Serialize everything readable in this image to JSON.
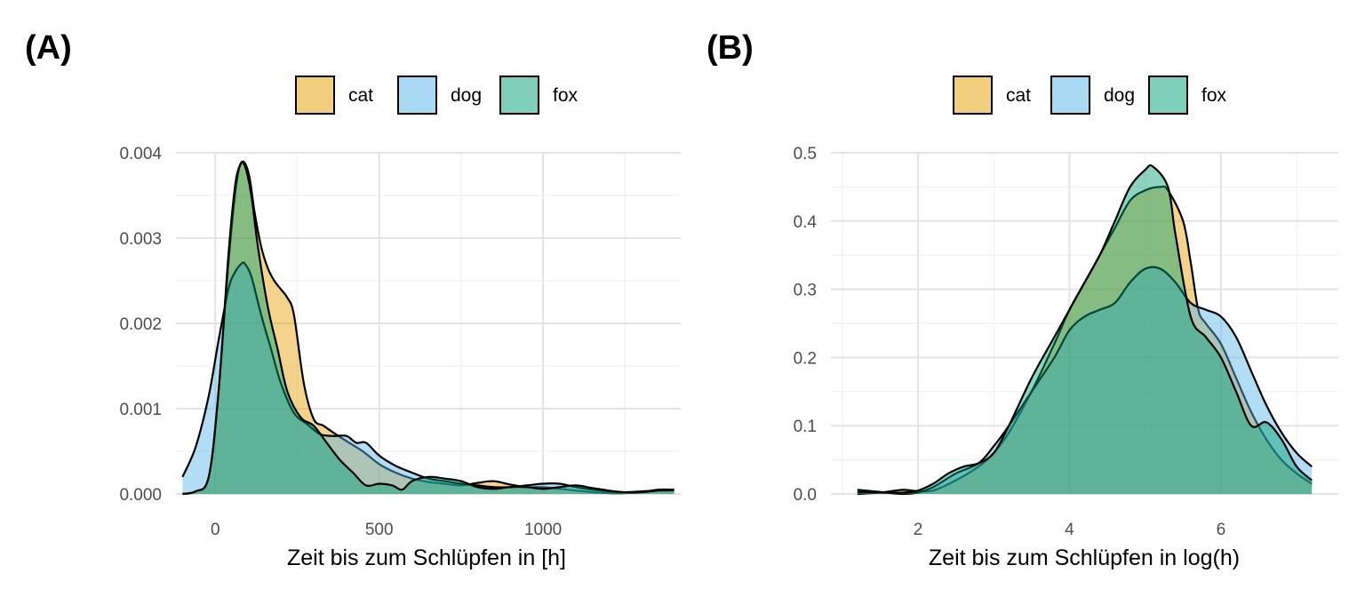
{
  "chart_data": [
    {
      "type": "area",
      "panel_label": "(A)",
      "xlabel": "Zeit bis zum Schlüpfen in [h]",
      "ylabel": "",
      "xlim": [
        -120,
        1420
      ],
      "ylim": [
        0,
        0.004
      ],
      "xticks": [
        0,
        500,
        1000
      ],
      "xtick_labels": [
        "0",
        "500",
        "1000"
      ],
      "yticks": [
        0,
        0.001,
        0.002,
        0.003,
        0.004
      ],
      "ytick_labels": [
        "0.000",
        "0.001",
        "0.002",
        "0.003",
        "0.004"
      ],
      "legend_position": "top",
      "grid": true,
      "series": [
        {
          "name": "cat",
          "color": "#E69F00",
          "x": [
            -100,
            -60,
            -20,
            10,
            40,
            60,
            75,
            90,
            105,
            120,
            140,
            160,
            180,
            200,
            220,
            240,
            270,
            300,
            330,
            360,
            400,
            450,
            500,
            550,
            600,
            650,
            700,
            750,
            800,
            850,
            900,
            950,
            1000,
            1050,
            1100,
            1150,
            1200,
            1250,
            1300,
            1350,
            1400
          ],
          "y": [
            0.0,
            3e-05,
            0.0002,
            0.0012,
            0.0027,
            0.0035,
            0.00385,
            0.00388,
            0.0037,
            0.0033,
            0.0029,
            0.00265,
            0.0025,
            0.0024,
            0.0023,
            0.0021,
            0.0013,
            0.00088,
            0.0008,
            0.00072,
            0.00062,
            0.0005,
            0.00035,
            0.00025,
            0.00018,
            0.00014,
            0.00012,
            0.0001,
            0.00013,
            0.00015,
            0.00011,
            8e-05,
            8e-05,
            6e-05,
            4e-05,
            2e-05,
            1e-05,
            1e-05,
            2e-05,
            5e-05,
            5e-05
          ]
        },
        {
          "name": "dog",
          "color": "#56B4E9",
          "x": [
            -100,
            -60,
            -20,
            10,
            40,
            60,
            80,
            90,
            110,
            140,
            170,
            200,
            240,
            280,
            320,
            360,
            400,
            430,
            460,
            500,
            550,
            600,
            650,
            700,
            750,
            800,
            850,
            900,
            950,
            1000,
            1050,
            1100,
            1150,
            1200,
            1250,
            1300,
            1350,
            1400
          ],
          "y": [
            0.0002,
            0.00055,
            0.00115,
            0.0018,
            0.0024,
            0.0026,
            0.0027,
            0.0027,
            0.00255,
            0.0021,
            0.0017,
            0.0013,
            0.00095,
            0.00082,
            0.0007,
            0.00068,
            0.00068,
            0.0006,
            0.0006,
            0.00045,
            0.00033,
            0.00025,
            0.00018,
            0.00015,
            0.00012,
            0.0001,
            8e-05,
            8e-05,
            0.0001,
            0.00012,
            0.00012,
            8e-05,
            5e-05,
            3e-05,
            2e-05,
            3e-05,
            4e-05,
            4e-05
          ]
        },
        {
          "name": "fox",
          "color": "#009E73",
          "x": [
            -100,
            -60,
            -20,
            10,
            40,
            60,
            75,
            90,
            110,
            130,
            160,
            190,
            220,
            260,
            300,
            340,
            380,
            420,
            460,
            500,
            540,
            570,
            600,
            650,
            700,
            750,
            800,
            850,
            900,
            950,
            1000,
            1050,
            1100,
            1150,
            1200,
            1250,
            1300,
            1350,
            1400
          ],
          "y": [
            0.0,
            3e-05,
            0.0002,
            0.0012,
            0.0028,
            0.0036,
            0.00385,
            0.00385,
            0.0035,
            0.0029,
            0.0022,
            0.0017,
            0.0012,
            0.0009,
            0.0008,
            0.0006,
            0.0004,
            0.00025,
            0.0001,
            0.00012,
            0.0001,
            5e-05,
            0.00015,
            0.0002,
            0.00018,
            0.00015,
            8e-05,
            6e-05,
            8e-05,
            8e-05,
            6e-05,
            8e-05,
            0.0001,
            7e-05,
            4e-05,
            2e-05,
            2e-05,
            4e-05,
            5e-05
          ]
        }
      ]
    },
    {
      "type": "area",
      "panel_label": "(B)",
      "xlabel": "Zeit bis zum Schlüpfen in log(h)",
      "ylabel": "",
      "xlim": [
        0.85,
        7.55
      ],
      "ylim": [
        0,
        0.5
      ],
      "xticks": [
        2,
        4,
        6
      ],
      "xtick_labels": [
        "2",
        "4",
        "6"
      ],
      "yticks": [
        0,
        0.1,
        0.2,
        0.3,
        0.4,
        0.5
      ],
      "ytick_labels": [
        "0.0",
        "0.1",
        "0.2",
        "0.3",
        "0.4",
        "0.5"
      ],
      "legend_position": "top",
      "grid": true,
      "series": [
        {
          "name": "cat",
          "color": "#E69F00",
          "x": [
            1.2,
            1.5,
            1.8,
            2.0,
            2.2,
            2.5,
            2.8,
            3.0,
            3.2,
            3.5,
            3.8,
            4.0,
            4.2,
            4.4,
            4.6,
            4.8,
            5.0,
            5.2,
            5.3,
            5.5,
            5.6,
            5.7,
            5.8,
            6.0,
            6.2,
            6.4,
            6.6,
            6.8,
            7.0,
            7.2
          ],
          "y": [
            0.0,
            0.002,
            0.006,
            0.004,
            0.005,
            0.02,
            0.04,
            0.06,
            0.09,
            0.15,
            0.22,
            0.27,
            0.31,
            0.35,
            0.39,
            0.43,
            0.445,
            0.45,
            0.445,
            0.4,
            0.34,
            0.27,
            0.25,
            0.22,
            0.17,
            0.12,
            0.08,
            0.05,
            0.03,
            0.015
          ]
        },
        {
          "name": "dog",
          "color": "#56B4E9",
          "x": [
            1.2,
            1.5,
            1.8,
            2.0,
            2.2,
            2.5,
            2.8,
            3.0,
            3.2,
            3.5,
            3.8,
            4.0,
            4.2,
            4.4,
            4.6,
            4.8,
            5.0,
            5.2,
            5.4,
            5.6,
            5.8,
            6.0,
            6.2,
            6.4,
            6.6,
            6.8,
            7.0,
            7.2
          ],
          "y": [
            0.006,
            0.003,
            0.0,
            0.002,
            0.01,
            0.03,
            0.045,
            0.07,
            0.1,
            0.15,
            0.2,
            0.24,
            0.26,
            0.27,
            0.28,
            0.31,
            0.33,
            0.33,
            0.31,
            0.28,
            0.27,
            0.26,
            0.23,
            0.18,
            0.13,
            0.09,
            0.06,
            0.04
          ]
        },
        {
          "name": "fox",
          "color": "#009E73",
          "x": [
            1.2,
            1.5,
            1.8,
            2.0,
            2.2,
            2.4,
            2.6,
            2.8,
            3.0,
            3.2,
            3.5,
            3.8,
            4.0,
            4.2,
            4.4,
            4.6,
            4.8,
            5.0,
            5.1,
            5.3,
            5.4,
            5.6,
            5.8,
            6.0,
            6.2,
            6.4,
            6.6,
            6.8,
            7.0,
            7.2
          ],
          "y": [
            0.003,
            0.002,
            0.002,
            0.005,
            0.015,
            0.03,
            0.04,
            0.045,
            0.06,
            0.1,
            0.17,
            0.23,
            0.27,
            0.31,
            0.35,
            0.4,
            0.45,
            0.475,
            0.48,
            0.45,
            0.38,
            0.26,
            0.23,
            0.2,
            0.15,
            0.1,
            0.105,
            0.08,
            0.04,
            0.02
          ]
        }
      ]
    }
  ]
}
